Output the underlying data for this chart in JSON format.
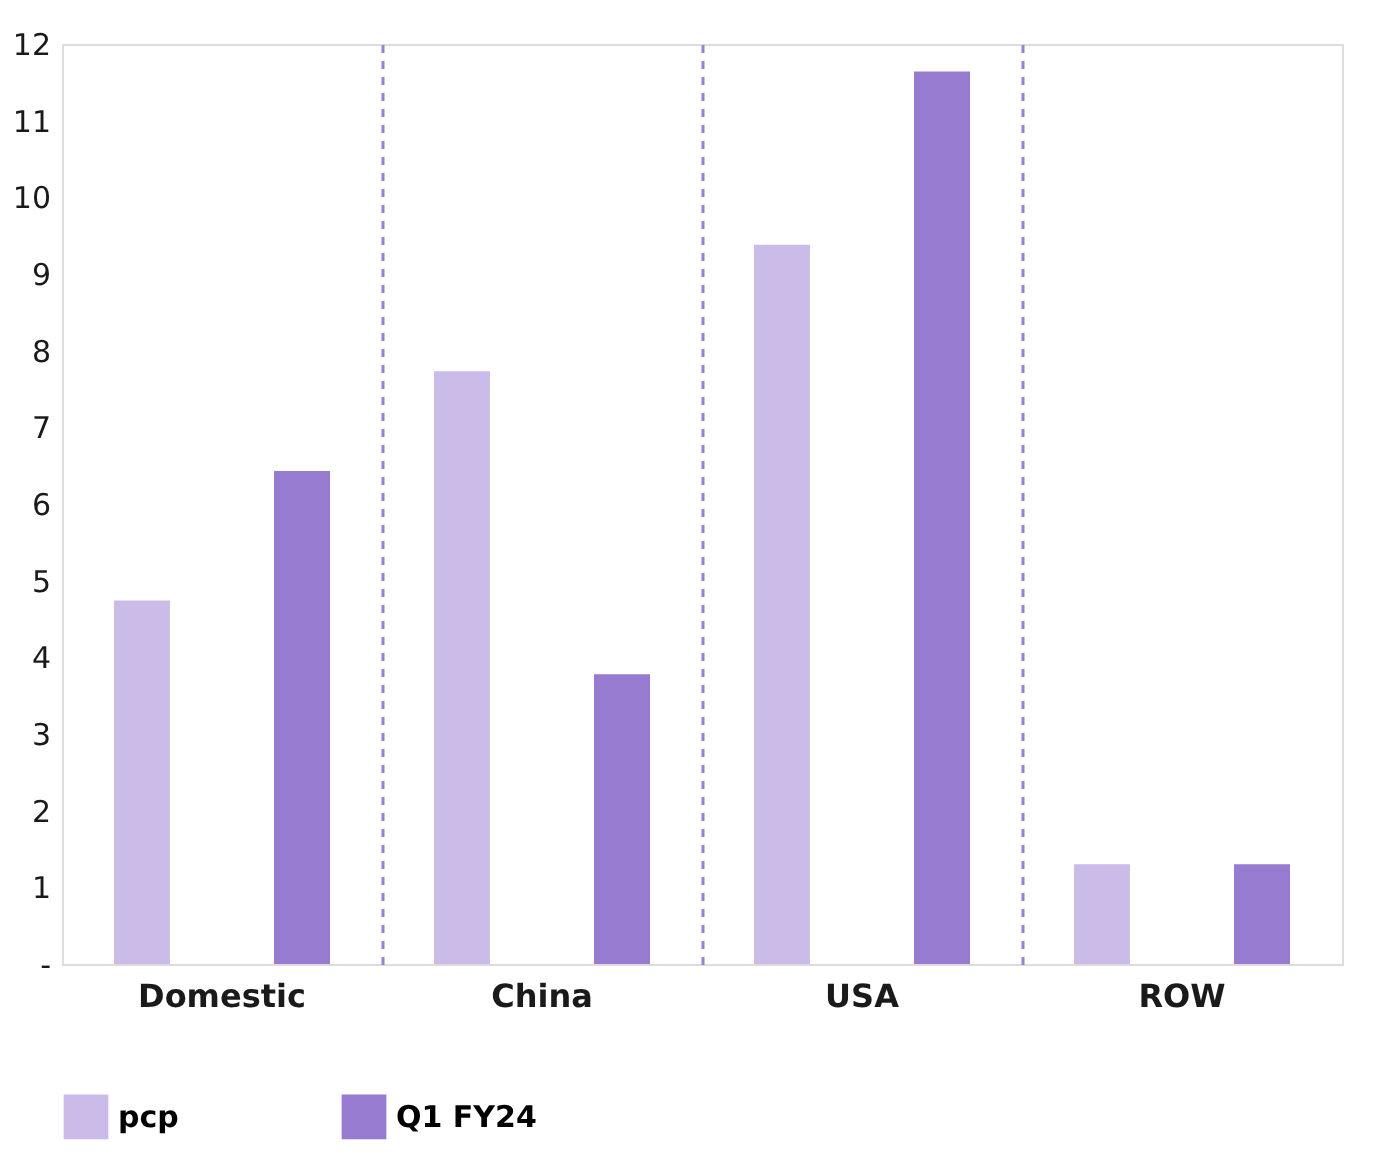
{
  "chart_data": {
    "type": "bar",
    "categories": [
      "Domestic",
      "China",
      "USA",
      "ROW"
    ],
    "series": [
      {
        "name": "pcp",
        "color": "#cbbbe8",
        "values": [
          4.74,
          7.73,
          9.38,
          1.3
        ]
      },
      {
        "name": "Q1 FY24",
        "color": "#967bd1",
        "values": [
          6.43,
          3.78,
          11.64,
          1.3
        ]
      }
    ],
    "ylim": [
      0,
      12
    ],
    "yticks": [
      {
        "value": 0,
        "label": "-"
      },
      1,
      2,
      3,
      4,
      5,
      6,
      7,
      8,
      9,
      10,
      11,
      12
    ],
    "grid": "x",
    "legend": "bottom"
  }
}
